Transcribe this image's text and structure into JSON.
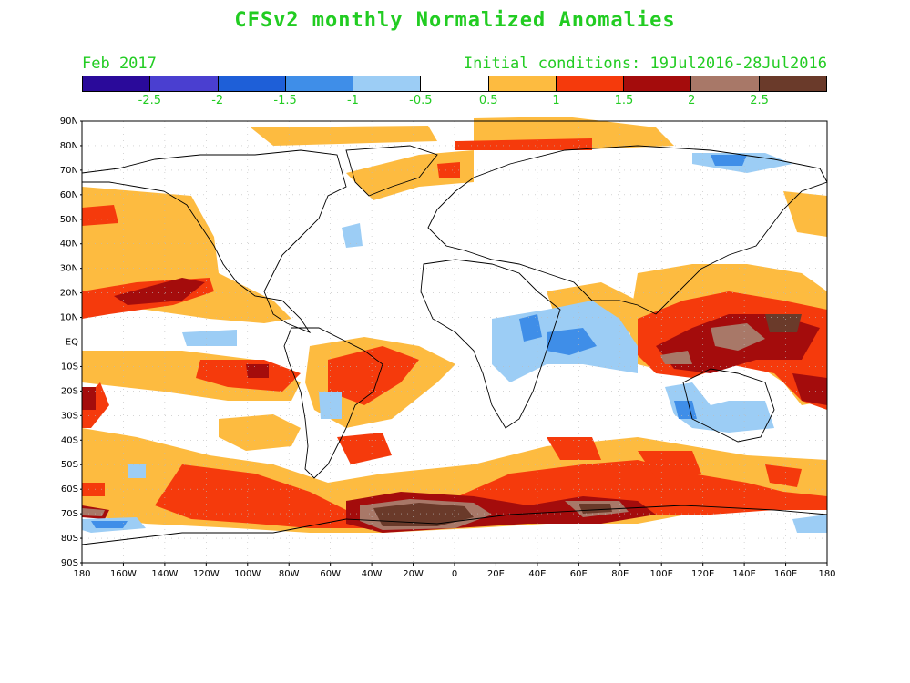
{
  "title": "CFSv2 monthly Normalized Anomalies",
  "subtitle_left": "Feb 2017",
  "subtitle_right": "Initial conditions: 19Jul2016-28Jul2016",
  "colorbar": {
    "colors": [
      "#2a0a9a",
      "#4a3fd0",
      "#1e5fd8",
      "#3f8ee8",
      "#9ccdf5",
      "#ffffff",
      "#fdbb40",
      "#f53a0c",
      "#a40c0c",
      "#a87868",
      "#6a3a2a"
    ],
    "tick_labels": [
      "-2.5",
      "-2",
      "-1.5",
      "-1",
      "-0.5",
      "0.5",
      "1",
      "1.5",
      "2",
      "2.5"
    ]
  },
  "lat_labels": [
    "90N",
    "80N",
    "70N",
    "60N",
    "50N",
    "40N",
    "30N",
    "20N",
    "10N",
    "EQ",
    "10S",
    "20S",
    "30S",
    "40S",
    "50S",
    "60S",
    "70S",
    "80S",
    "90S"
  ],
  "lon_labels": [
    "180",
    "160W",
    "140W",
    "120W",
    "100W",
    "80W",
    "60W",
    "40W",
    "20W",
    "0",
    "20E",
    "40E",
    "60E",
    "80E",
    "100E",
    "120E",
    "140E",
    "160E",
    "180"
  ]
}
